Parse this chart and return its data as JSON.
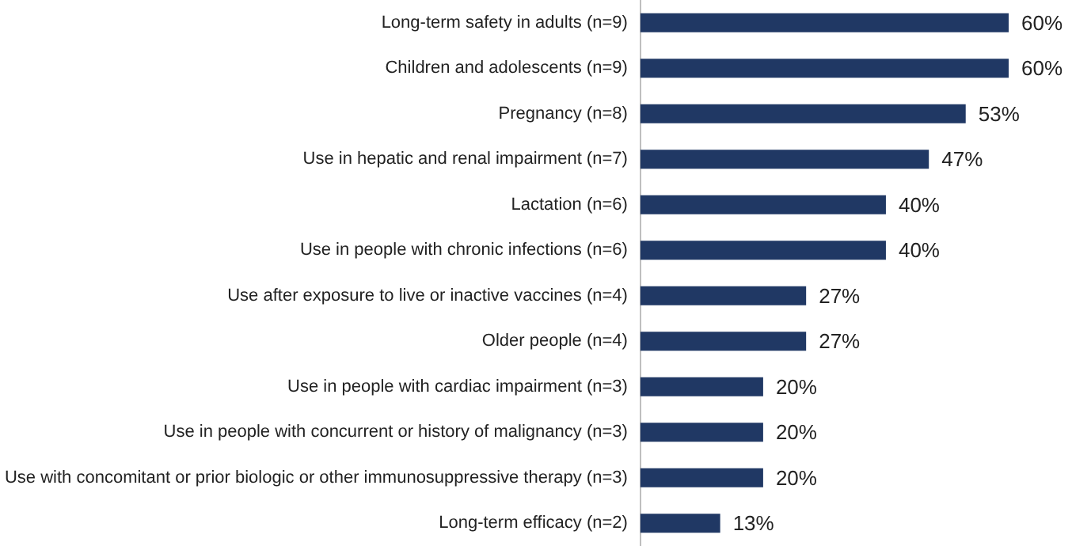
{
  "chart_data": {
    "type": "bar",
    "orientation": "horizontal",
    "categories": [
      "Long-term safety in adults (n=9)",
      "Children and adolescents (n=9)",
      "Pregnancy (n=8)",
      "Use in hepatic and renal impairment (n=7)",
      "Lactation (n=6)",
      "Use in people with chronic infections (n=6)",
      "Use after exposure to live or inactive vaccines (n=4)",
      "Older people (n=4)",
      "Use in people with cardiac impairment (n=3)",
      "Use in people with concurrent or history of malignancy (n=3)",
      "Use with concomitant or prior biologic or other immunosuppressive therapy (n=3)",
      "Long-term efficacy (n=2)"
    ],
    "values": [
      60,
      60,
      53,
      47,
      40,
      40,
      27,
      27,
      20,
      20,
      20,
      13
    ],
    "value_labels": [
      "60%",
      "60%",
      "53%",
      "47%",
      "40%",
      "40%",
      "27%",
      "27%",
      "20%",
      "20%",
      "20%",
      "13%"
    ],
    "color": "#203864"
  }
}
